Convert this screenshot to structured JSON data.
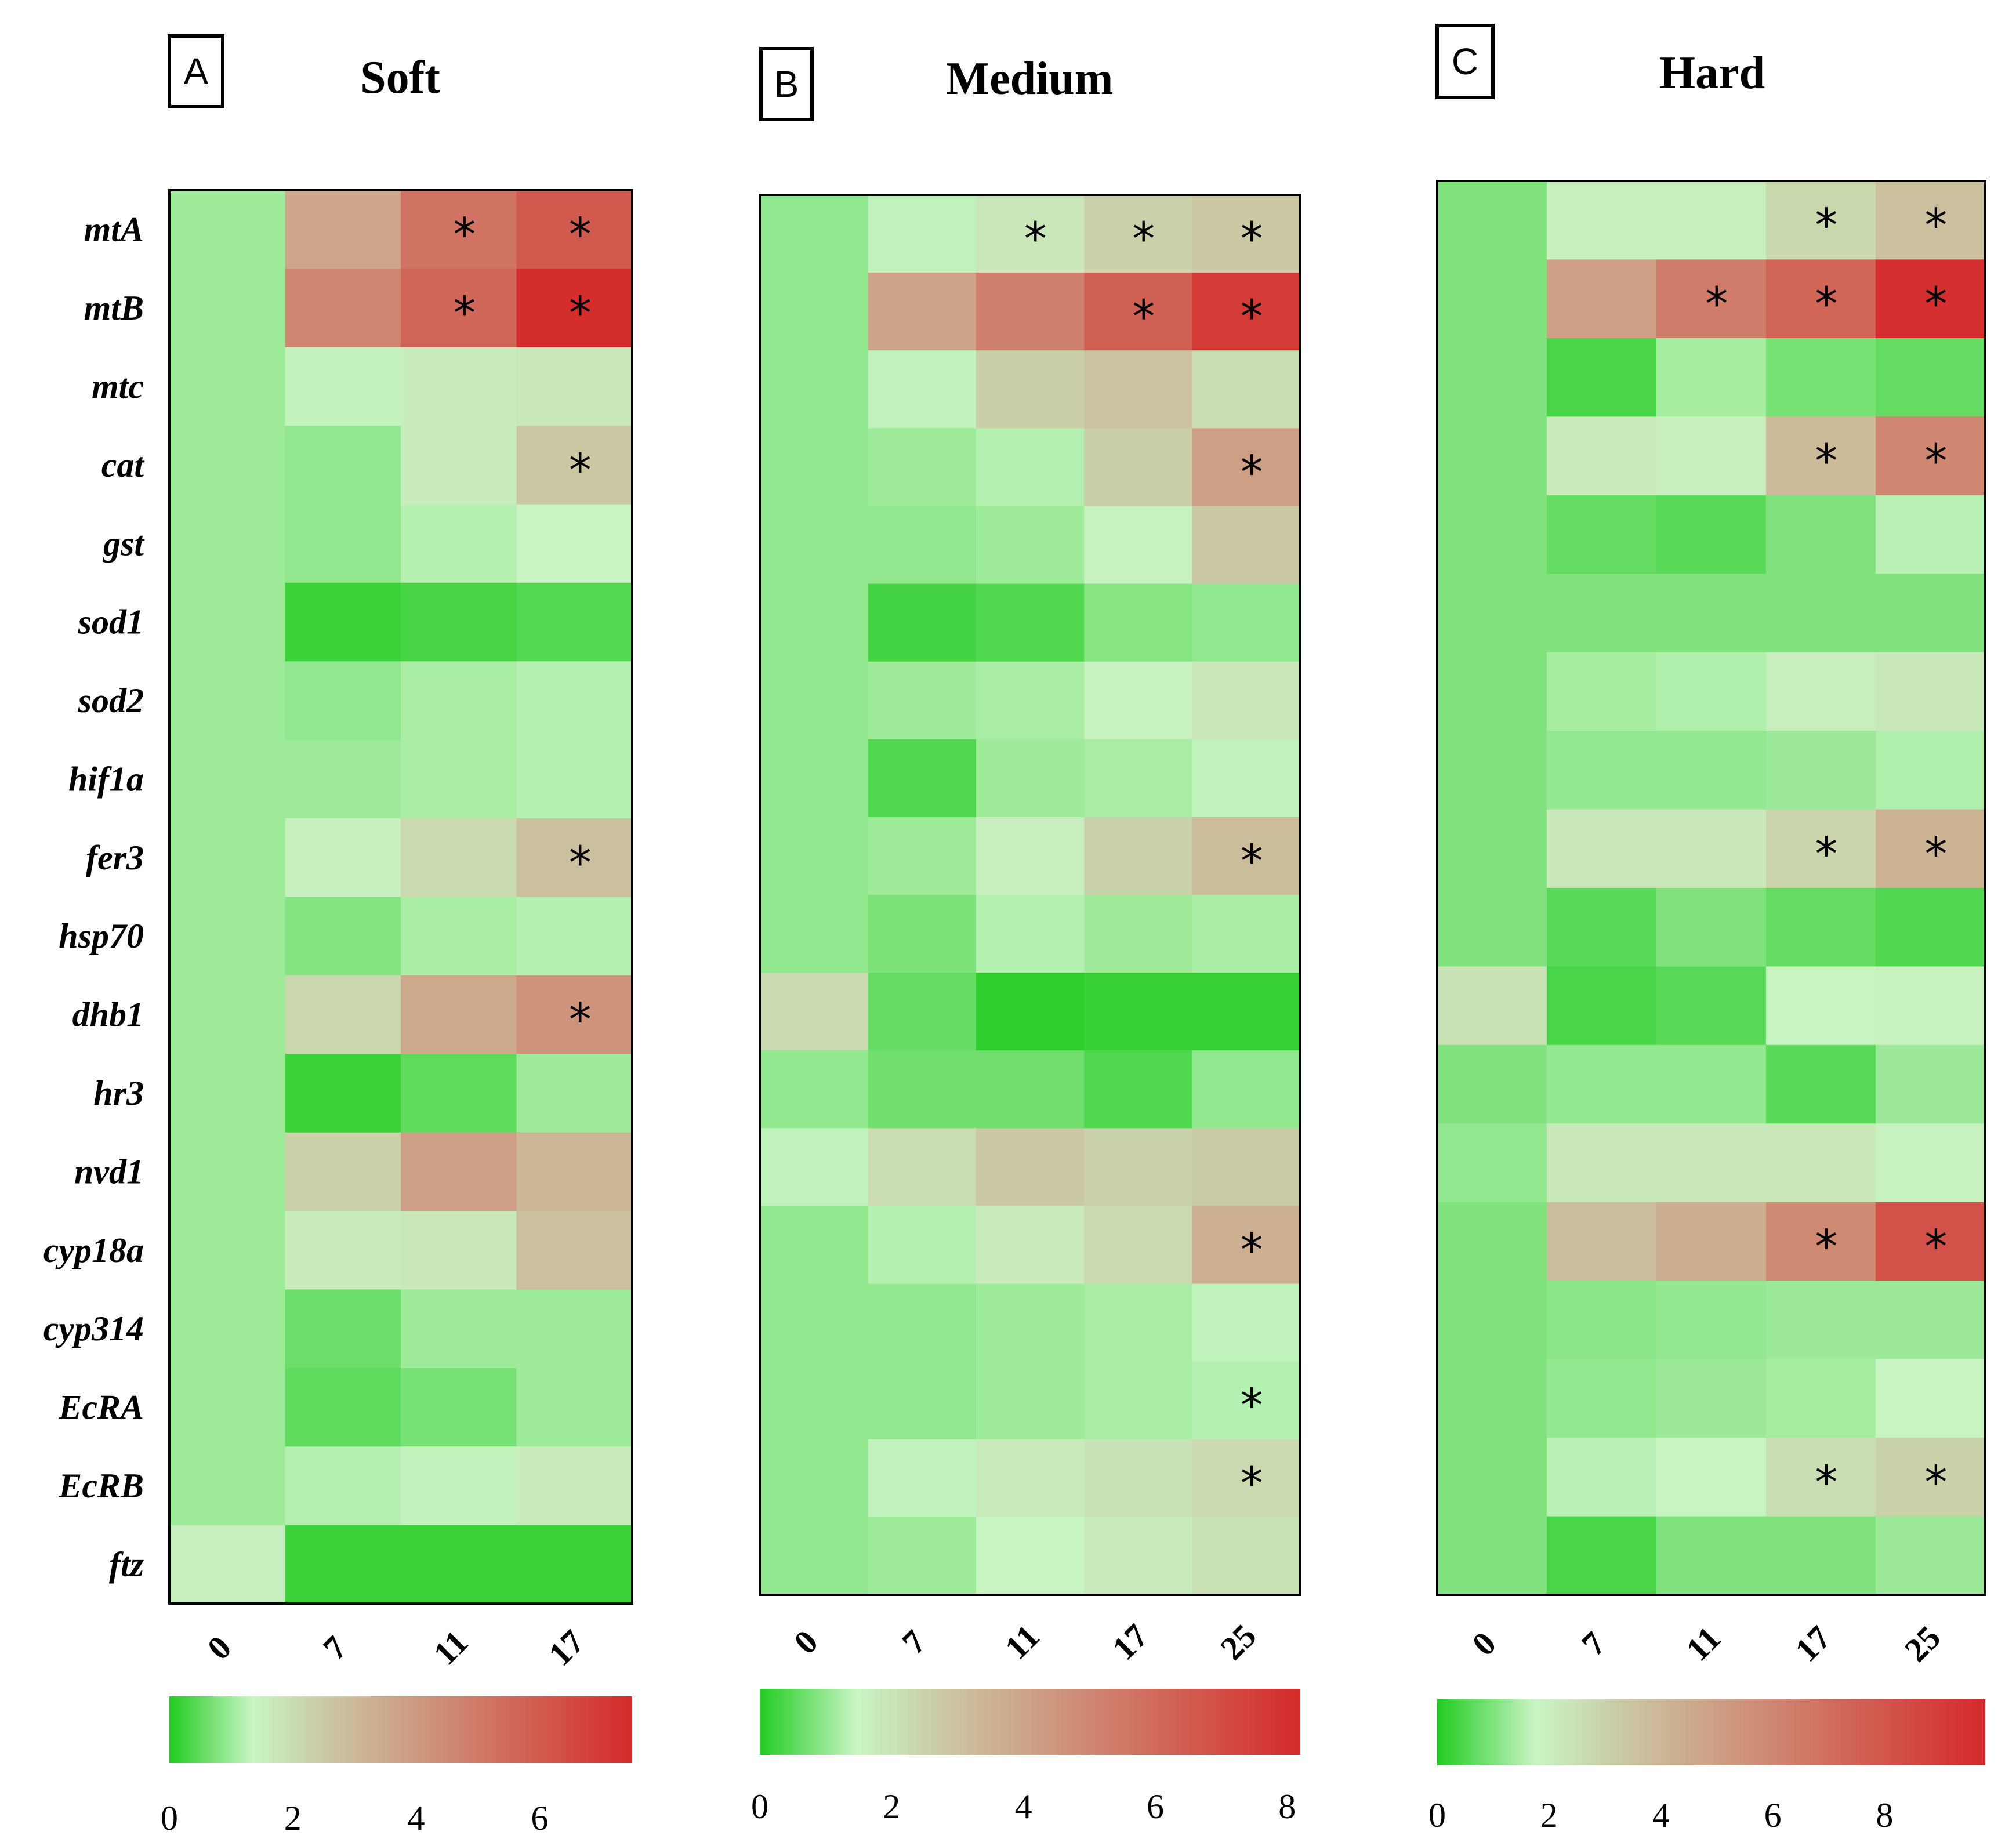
{
  "chart_data": [
    {
      "type": "heatmap",
      "panel_letter": "A",
      "title": "Soft",
      "x": [
        "0",
        "7",
        "11",
        "17"
      ],
      "genes": [
        "mtA",
        "mtB",
        "mtc",
        "cat",
        "gst",
        "sod1",
        "sod2",
        "hif1a",
        "fer3",
        "hsp70",
        "dhb1",
        "hr3",
        "nvd1",
        "cyp18a",
        "cyp314",
        "EcRA",
        "EcRB",
        "ftz"
      ],
      "values": [
        [
          1.0,
          3.6,
          5.2,
          6.0
        ],
        [
          1.0,
          4.6,
          5.6,
          7.4
        ],
        [
          1.0,
          1.3,
          1.6,
          1.7
        ],
        [
          1.0,
          0.9,
          1.6,
          2.6
        ],
        [
          1.0,
          0.9,
          1.2,
          1.4
        ],
        [
          1.0,
          0.2,
          0.3,
          0.4
        ],
        [
          1.0,
          0.9,
          1.1,
          1.2
        ],
        [
          1.0,
          1.0,
          1.1,
          1.2
        ],
        [
          1.0,
          1.5,
          2.1,
          2.8
        ],
        [
          1.0,
          0.8,
          1.1,
          1.2
        ],
        [
          1.0,
          2.2,
          3.5,
          4.2
        ],
        [
          1.0,
          0.2,
          0.5,
          1.0
        ],
        [
          1.0,
          2.3,
          3.8,
          3.1
        ],
        [
          1.0,
          1.6,
          1.7,
          2.8
        ],
        [
          1.0,
          0.6,
          1.0,
          1.0
        ],
        [
          1.0,
          0.5,
          0.7,
          1.0
        ],
        [
          1.0,
          1.2,
          1.3,
          1.6
        ],
        [
          1.5,
          0.2,
          0.2,
          0.2
        ]
      ],
      "significant": [
        [
          false,
          false,
          true,
          true
        ],
        [
          false,
          false,
          true,
          true
        ],
        [
          false,
          false,
          false,
          false
        ],
        [
          false,
          false,
          false,
          true
        ],
        [
          false,
          false,
          false,
          false
        ],
        [
          false,
          false,
          false,
          false
        ],
        [
          false,
          false,
          false,
          false
        ],
        [
          false,
          false,
          false,
          false
        ],
        [
          false,
          false,
          false,
          true
        ],
        [
          false,
          false,
          false,
          false
        ],
        [
          false,
          false,
          false,
          true
        ],
        [
          false,
          false,
          false,
          false
        ],
        [
          false,
          false,
          false,
          false
        ],
        [
          false,
          false,
          false,
          false
        ],
        [
          false,
          false,
          false,
          false
        ],
        [
          false,
          false,
          false,
          false
        ],
        [
          false,
          false,
          false,
          false
        ],
        [
          false,
          false,
          false,
          false
        ]
      ],
      "colorbar": {
        "range": [
          0,
          7.5
        ],
        "ticks": [
          "0",
          "2",
          "4",
          "6"
        ]
      }
    },
    {
      "type": "heatmap",
      "panel_letter": "B",
      "title": "Medium",
      "x": [
        "0",
        "7",
        "11",
        "17",
        "25"
      ],
      "genes": [
        "mtA",
        "mtB",
        "mtc",
        "cat",
        "gst",
        "sod1",
        "sod2",
        "hif1a",
        "fer3",
        "hsp70",
        "dhb1",
        "hr3",
        "nvd1",
        "cyp18a",
        "cyp314",
        "EcRA",
        "EcRB",
        "ftz"
      ],
      "values": [
        [
          1.0,
          1.4,
          1.9,
          2.5,
          2.8
        ],
        [
          1.0,
          4.0,
          5.2,
          6.3,
          7.6
        ],
        [
          1.0,
          1.4,
          2.6,
          3.0,
          2.2
        ],
        [
          1.0,
          1.1,
          1.3,
          2.6,
          4.2
        ],
        [
          1.0,
          1.0,
          1.1,
          1.6,
          2.8
        ],
        [
          1.0,
          0.3,
          0.4,
          0.9,
          1.0
        ],
        [
          1.0,
          1.1,
          1.2,
          1.6,
          1.9
        ],
        [
          1.0,
          0.4,
          1.1,
          1.2,
          1.4
        ],
        [
          1.0,
          1.1,
          1.7,
          2.5,
          3.2
        ],
        [
          1.0,
          0.8,
          1.3,
          1.1,
          1.2
        ],
        [
          2.3,
          0.6,
          0.1,
          0.2,
          0.2
        ],
        [
          1.0,
          0.7,
          0.7,
          0.4,
          1.0
        ],
        [
          1.4,
          2.2,
          2.8,
          2.5,
          2.7
        ],
        [
          1.0,
          1.3,
          1.8,
          2.3,
          3.6
        ],
        [
          1.0,
          1.0,
          1.1,
          1.2,
          1.4
        ],
        [
          1.0,
          1.0,
          1.1,
          1.2,
          1.3
        ],
        [
          1.0,
          1.4,
          1.8,
          2.0,
          2.3
        ],
        [
          1.0,
          1.1,
          1.5,
          1.8,
          2.1
        ]
      ],
      "significant": [
        [
          false,
          false,
          true,
          true,
          true
        ],
        [
          false,
          false,
          false,
          true,
          true
        ],
        [
          false,
          false,
          false,
          false,
          false
        ],
        [
          false,
          false,
          false,
          false,
          true
        ],
        [
          false,
          false,
          false,
          false,
          false
        ],
        [
          false,
          false,
          false,
          false,
          false
        ],
        [
          false,
          false,
          false,
          false,
          false
        ],
        [
          false,
          false,
          false,
          false,
          false
        ],
        [
          false,
          false,
          false,
          false,
          true
        ],
        [
          false,
          false,
          false,
          false,
          false
        ],
        [
          false,
          false,
          false,
          false,
          false
        ],
        [
          false,
          false,
          false,
          false,
          false
        ],
        [
          false,
          false,
          false,
          false,
          false
        ],
        [
          false,
          false,
          false,
          false,
          true
        ],
        [
          false,
          false,
          false,
          false,
          false
        ],
        [
          false,
          false,
          false,
          false,
          true
        ],
        [
          false,
          false,
          false,
          false,
          true
        ],
        [
          false,
          false,
          false,
          false,
          false
        ]
      ],
      "colorbar": {
        "range": [
          0,
          8.2
        ],
        "ticks": [
          "0",
          "2",
          "4",
          "6",
          "8"
        ]
      }
    },
    {
      "type": "heatmap",
      "panel_letter": "C",
      "title": "Hard",
      "x": [
        "0",
        "7",
        "11",
        "17",
        "25"
      ],
      "genes": [
        "mtA",
        "mtB",
        "mtc",
        "cat",
        "gst",
        "sod1",
        "sod2",
        "hif1a",
        "fer3",
        "hsp70",
        "dhb1",
        "hr3",
        "nvd1",
        "cyp18a",
        "cyp314",
        "EcRA",
        "EcRB",
        "ftz"
      ],
      "values": [
        [
          1.0,
          2.0,
          2.0,
          2.8,
          3.6
        ],
        [
          1.0,
          5.0,
          6.4,
          7.4,
          9.6
        ],
        [
          1.0,
          0.4,
          1.4,
          0.9,
          0.7
        ],
        [
          1.0,
          2.1,
          2.0,
          3.9,
          6.0
        ],
        [
          1.0,
          0.7,
          0.6,
          1.0,
          1.6
        ],
        [
          1.0,
          1.0,
          1.0,
          1.0,
          1.0
        ],
        [
          1.0,
          1.4,
          1.5,
          2.0,
          2.2
        ],
        [
          1.0,
          1.2,
          1.2,
          1.3,
          1.5
        ],
        [
          1.0,
          2.2,
          2.2,
          2.9,
          4.2
        ],
        [
          1.0,
          0.6,
          1.0,
          0.7,
          0.5
        ],
        [
          2.4,
          0.4,
          0.6,
          1.8,
          1.9
        ],
        [
          1.0,
          1.2,
          1.2,
          0.6,
          1.3
        ],
        [
          1.2,
          2.2,
          2.2,
          2.2,
          1.9
        ],
        [
          1.0,
          3.8,
          4.4,
          5.9,
          8.2
        ],
        [
          1.0,
          1.1,
          1.2,
          1.3,
          1.3
        ],
        [
          1.0,
          1.2,
          1.3,
          1.4,
          1.8
        ],
        [
          1.0,
          1.6,
          1.8,
          2.6,
          3.0
        ],
        [
          1.0,
          0.4,
          1.0,
          1.0,
          1.3
        ]
      ],
      "significant": [
        [
          false,
          false,
          false,
          true,
          true
        ],
        [
          false,
          false,
          true,
          true,
          true
        ],
        [
          false,
          false,
          false,
          false,
          false
        ],
        [
          false,
          false,
          false,
          true,
          true
        ],
        [
          false,
          false,
          false,
          false,
          false
        ],
        [
          false,
          false,
          false,
          false,
          false
        ],
        [
          false,
          false,
          false,
          false,
          false
        ],
        [
          false,
          false,
          false,
          false,
          false
        ],
        [
          false,
          false,
          false,
          true,
          true
        ],
        [
          false,
          false,
          false,
          false,
          false
        ],
        [
          false,
          false,
          false,
          false,
          false
        ],
        [
          false,
          false,
          false,
          false,
          false
        ],
        [
          false,
          false,
          false,
          false,
          false
        ],
        [
          false,
          false,
          false,
          true,
          true
        ],
        [
          false,
          false,
          false,
          false,
          false
        ],
        [
          false,
          false,
          false,
          false,
          false
        ],
        [
          false,
          false,
          false,
          true,
          true
        ],
        [
          false,
          false,
          false,
          false,
          false
        ]
      ],
      "colorbar": {
        "range": [
          0,
          9.8
        ],
        "ticks": [
          "0",
          "2",
          "4",
          "6",
          "8"
        ]
      }
    }
  ],
  "significance_marker": "*",
  "colors": {
    "low": "#22cc22",
    "light_green": "#c8f5c3",
    "tan": "#cbc3a0",
    "high": "#d42a2a"
  }
}
